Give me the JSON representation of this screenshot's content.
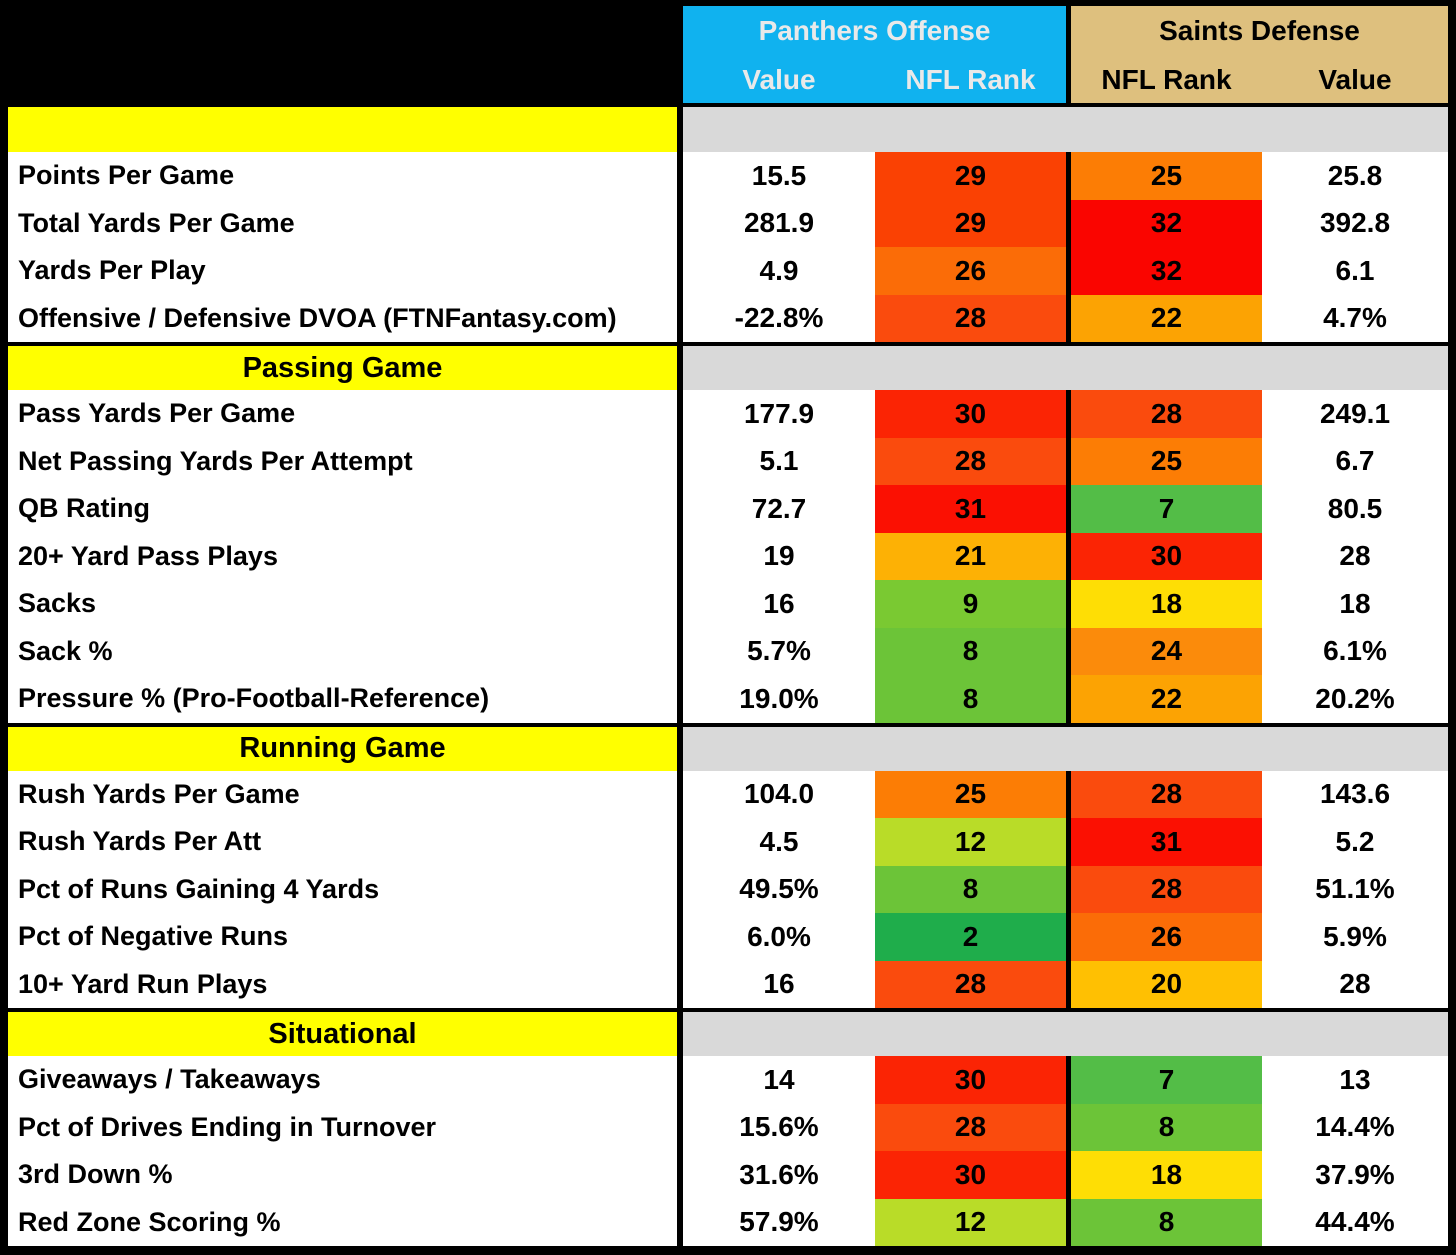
{
  "chart_data": {
    "type": "table",
    "column_groups": [
      {
        "label": "Panthers Offense",
        "columns": [
          "Value",
          "NFL Rank"
        ]
      },
      {
        "label": "Saints Defense",
        "columns": [
          "NFL Rank",
          "Value"
        ]
      }
    ],
    "rank_scale": {
      "best": 1,
      "worst": 32
    },
    "sections": [
      {
        "title": "",
        "rows": [
          {
            "label": "Points Per Game",
            "off_value": "15.5",
            "off_rank": 29,
            "def_rank": 25,
            "def_value": "25.8"
          },
          {
            "label": "Total Yards Per Game",
            "off_value": "281.9",
            "off_rank": 29,
            "def_rank": 32,
            "def_value": "392.8"
          },
          {
            "label": "Yards Per Play",
            "off_value": "4.9",
            "off_rank": 26,
            "def_rank": 32,
            "def_value": "6.1"
          },
          {
            "label": "Offensive / Defensive DVOA (FTNFantasy.com)",
            "off_value": "-22.8%",
            "off_rank": 28,
            "def_rank": 22,
            "def_value": "4.7%"
          }
        ]
      },
      {
        "title": "Passing Game",
        "rows": [
          {
            "label": "Pass Yards Per Game",
            "off_value": "177.9",
            "off_rank": 30,
            "def_rank": 28,
            "def_value": "249.1"
          },
          {
            "label": "Net Passing Yards Per Attempt",
            "off_value": "5.1",
            "off_rank": 28,
            "def_rank": 25,
            "def_value": "6.7"
          },
          {
            "label": "QB Rating",
            "off_value": "72.7",
            "off_rank": 31,
            "def_rank": 7,
            "def_value": "80.5"
          },
          {
            "label": "20+ Yard Pass Plays",
            "off_value": "19",
            "off_rank": 21,
            "def_rank": 30,
            "def_value": "28"
          },
          {
            "label": "Sacks",
            "off_value": "16",
            "off_rank": 9,
            "def_rank": 18,
            "def_value": "18"
          },
          {
            "label": "Sack %",
            "off_value": "5.7%",
            "off_rank": 8,
            "def_rank": 24,
            "def_value": "6.1%"
          },
          {
            "label": "Pressure % (Pro-Football-Reference)",
            "off_value": "19.0%",
            "off_rank": 8,
            "def_rank": 22,
            "def_value": "20.2%"
          }
        ]
      },
      {
        "title": "Running Game",
        "rows": [
          {
            "label": "Rush Yards Per Game",
            "off_value": "104.0",
            "off_rank": 25,
            "def_rank": 28,
            "def_value": "143.6"
          },
          {
            "label": "Rush Yards Per Att",
            "off_value": "4.5",
            "off_rank": 12,
            "def_rank": 31,
            "def_value": "5.2"
          },
          {
            "label": "Pct of Runs Gaining 4 Yards",
            "off_value": "49.5%",
            "off_rank": 8,
            "def_rank": 28,
            "def_value": "51.1%"
          },
          {
            "label": "Pct of Negative Runs",
            "off_value": "6.0%",
            "off_rank": 2,
            "def_rank": 26,
            "def_value": "5.9%"
          },
          {
            "label": "10+ Yard Run Plays",
            "off_value": "16",
            "off_rank": 28,
            "def_rank": 20,
            "def_value": "28"
          }
        ]
      },
      {
        "title": "Situational",
        "rows": [
          {
            "label": "Giveaways / Takeaways",
            "off_value": "14",
            "off_rank": 30,
            "def_rank": 7,
            "def_value": "13"
          },
          {
            "label": "Pct of Drives Ending in Turnover",
            "off_value": "15.6%",
            "off_rank": 28,
            "def_rank": 8,
            "def_value": "14.4%"
          },
          {
            "label": "3rd Down %",
            "off_value": "31.6%",
            "off_rank": 30,
            "def_rank": 18,
            "def_value": "37.9%"
          },
          {
            "label": "Red Zone Scoring %",
            "off_value": "57.9%",
            "off_rank": 12,
            "def_rank": 8,
            "def_value": "44.4%"
          }
        ]
      }
    ]
  },
  "colors": {
    "offense_header_bg": "#10B2EF",
    "offense_header_text": "#E9E9E9",
    "defense_header_bg": "#DEC07E",
    "defense_header_text": "#000000",
    "section_header_bg": "#FFFF00",
    "section_band_bg": "#D9D9D9",
    "grid_black": "#000000",
    "rank_colors": {
      "2": "#1FAD4B",
      "7": "#53BD47",
      "8": "#6CC438",
      "9": "#7AC932",
      "12": "#B9DC28",
      "18": "#FEDE05",
      "20": "#FFC002",
      "21": "#FDB105",
      "22": "#FCA303",
      "24": "#FB8B0B",
      "25": "#FC7D05",
      "26": "#FB6C07",
      "28": "#FA4B0D",
      "29": "#FA4103",
      "30": "#FB2404",
      "31": "#FB1002",
      "32": "#FA0500"
    }
  }
}
